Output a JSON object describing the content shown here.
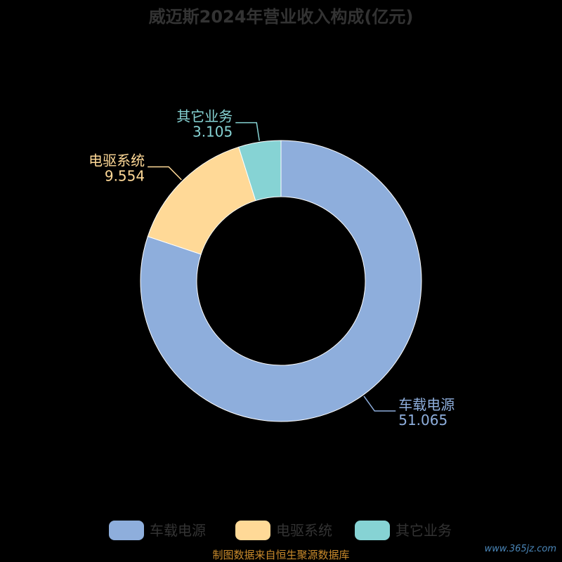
{
  "chart_data": {
    "type": "pie",
    "title": "威迈斯2024年营业收入构成(亿元)",
    "slices": [
      {
        "name": "车载电源",
        "value": 51.065,
        "value_label": "51.065",
        "color": "#8eaedc"
      },
      {
        "name": "电驱系统",
        "value": 9.554,
        "value_label": "9.554",
        "color": "#ffd997"
      },
      {
        "name": "其它业务",
        "value": 3.105,
        "value_label": "3.105",
        "color": "#86d3d4"
      }
    ],
    "legend_position": "bottom"
  },
  "footer": {
    "source": "制图数据来自恒生聚源数据库",
    "watermark": "www.365jz.com"
  }
}
